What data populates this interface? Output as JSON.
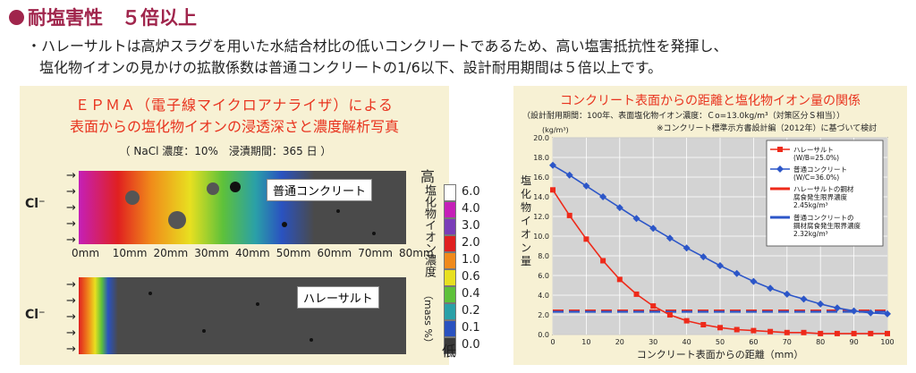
{
  "section_title": "耐塩害性　５倍以上",
  "description": {
    "line1": "・ハレーサルトは高炉スラグを用いた水結合材比の低いコンクリートであるため、高い塩害抵抗性を発揮し、",
    "line2": "塩化物イオンの見かけの拡散係数は普通コンクリートの1/6以下、設計耐用期間は５倍以上です。"
  },
  "epma": {
    "title1": "ＥＰＭＡ（電子線マイクロアナライザ）による",
    "title2": "表面からの塩化物イオンの浸透深さと濃度解析写真",
    "conditions": "（ NaCl 濃度：10%　浸漬期間：365 日 ）",
    "cl_label": "Cl⁻",
    "photo1_label": "普通コンクリート",
    "photo2_label": "ハレーサルト",
    "scale_ticks": [
      "0mm",
      "10mm",
      "20mm",
      "30mm",
      "40mm",
      "50mm",
      "60mm",
      "70mm",
      "80mm"
    ],
    "colorbar": {
      "top_label": "高",
      "bottom_label": "低",
      "axis_label": "塩化物イオン濃度",
      "unit": "（mass %）",
      "values": [
        "6.0",
        "4.0",
        "3.0",
        "2.0",
        "1.0",
        "0.6",
        "0.4",
        "0.2",
        "0.1",
        "0.0"
      ],
      "colors": [
        "#ffffff",
        "#c51fb8",
        "#7a3db8",
        "#e02020",
        "#f08a1a",
        "#e8e020",
        "#5ec13a",
        "#2aa0a8",
        "#2a52c0",
        "#3a3a3a"
      ]
    }
  },
  "chart_data": {
    "type": "line",
    "title": "コンクリート表面からの距離と塩化物イオン量の関係",
    "subtitle": "（設計耐用期間：100年、表面塩化物イオン濃度：Ｃo=13.0kg/m³（対策区分Ｓ相当））",
    "note": "※コンクリート標準示方書設計編（2012年）に基づいて検討",
    "xlabel": "コンクリート表面からの距離（mm）",
    "ylabel": "塩化物イオン量",
    "yunit": "(kg/m³)",
    "xlim": [
      0,
      100
    ],
    "ylim": [
      0,
      20
    ],
    "xticks": [
      "0",
      "10",
      "20",
      "30",
      "40",
      "50",
      "60",
      "70",
      "80",
      "90",
      "100"
    ],
    "yticks": [
      "0.0",
      "2.0",
      "4.0",
      "6.0",
      "8.0",
      "10.0",
      "12.0",
      "14.0",
      "16.0",
      "18.0",
      "20.0"
    ],
    "grid": true,
    "legend_position": "top-right",
    "series": [
      {
        "name": "ハレーサルト",
        "note": "(W/B=25.0%)",
        "color": "#ee2a1a",
        "marker": "square",
        "x": [
          0,
          5,
          10,
          15,
          20,
          25,
          30,
          35,
          40,
          45,
          50,
          55,
          60,
          65,
          70,
          75,
          80,
          85,
          90,
          95,
          100
        ],
        "y": [
          14.7,
          12.1,
          9.7,
          7.5,
          5.6,
          4.1,
          2.9,
          2.0,
          1.4,
          1.0,
          0.7,
          0.5,
          0.4,
          0.3,
          0.2,
          0.2,
          0.1,
          0.1,
          0.1,
          0.1,
          0.1
        ]
      },
      {
        "name": "普通コンクリート",
        "note": "(W/C=36.0%)",
        "color": "#2c56c8",
        "marker": "diamond",
        "x": [
          0,
          5,
          10,
          15,
          20,
          25,
          30,
          35,
          40,
          45,
          50,
          55,
          60,
          65,
          70,
          75,
          80,
          85,
          90,
          95,
          100
        ],
        "y": [
          17.2,
          16.2,
          15.1,
          14.0,
          12.9,
          11.8,
          10.8,
          9.8,
          8.8,
          7.9,
          7.0,
          6.2,
          5.4,
          4.7,
          4.1,
          3.6,
          3.1,
          2.7,
          2.4,
          2.2,
          2.1
        ]
      }
    ],
    "thresholds": [
      {
        "name": "ハレーサルトの鋼材腐食発生限界濃度",
        "value_label": "2.45kg/m³",
        "y": 2.45,
        "color": "#ee2a1a"
      },
      {
        "name": "普通コンクリートの鋼材腐食発生限界濃度",
        "value_label": "2.32kg/m³",
        "y": 2.32,
        "color": "#2c56c8"
      }
    ]
  }
}
